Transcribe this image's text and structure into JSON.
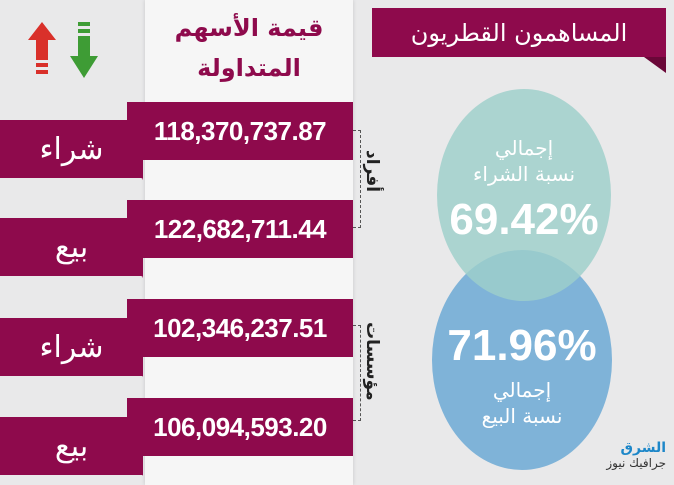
{
  "header": {
    "title": "المساهمون القطريون"
  },
  "column_title": {
    "line1": "قيمة الأسهم",
    "line2": "المتداولة"
  },
  "icons": {
    "up": "arrow-up-icon",
    "down": "arrow-down-icon",
    "up_color": "#d9302a",
    "down_color": "#3e9c35"
  },
  "groups": [
    {
      "label": "أفراد",
      "rows": [
        {
          "type": "شراء",
          "value": "118,370,737.87"
        },
        {
          "type": "بيع",
          "value": "122,682,711.44"
        }
      ]
    },
    {
      "label": "مؤسسات",
      "rows": [
        {
          "type": "شراء",
          "value": "102,346,237.51"
        },
        {
          "type": "بيع",
          "value": "106,094,593.20"
        }
      ]
    }
  ],
  "buy_circle": {
    "line1": "إجمالي",
    "line2": "نسبة الشراء",
    "value": "69.42%",
    "color": "#9dcfca"
  },
  "sell_circle": {
    "line1": "إجمالي",
    "line2": "نسبة البيع",
    "value": "71.96%",
    "color": "#7fb3d8"
  },
  "logo": {
    "name": "الشرق",
    "sub": "جرافيك نيوز"
  },
  "colors": {
    "maroon": "#8e0a4c"
  }
}
